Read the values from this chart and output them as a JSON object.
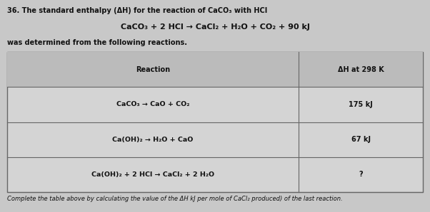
{
  "title": "36. The standard enthalpy (ΔH) for the reaction of CaCO₃ with HCl",
  "center_equation": "CaCO₃ + 2 HCl → CaCl₂ + H₂O + CO₂ + 90 kJ",
  "subtitle": "was determined from the following reactions.",
  "table_header": [
    "Reaction",
    "ΔH at 298 K"
  ],
  "table_rows": [
    [
      "CaCO₃ → CaO + CO₂",
      "175 kJ"
    ],
    [
      "Ca(OH)₂ → H₂O + CaO",
      "67 kJ"
    ],
    [
      "Ca(OH)₂ + 2 HCl → CaCl₂ + 2 H₂O",
      "?"
    ]
  ],
  "footer": "Complete the table above by calculating the value of the ΔH kJ per mole of CaCl₂ produced) of the last reaction.",
  "bg_color": "#c8c8c8",
  "table_bg": "#d4d4d4",
  "header_bg": "#bbbbbb",
  "text_color": "#111111",
  "border_color": "#666666"
}
